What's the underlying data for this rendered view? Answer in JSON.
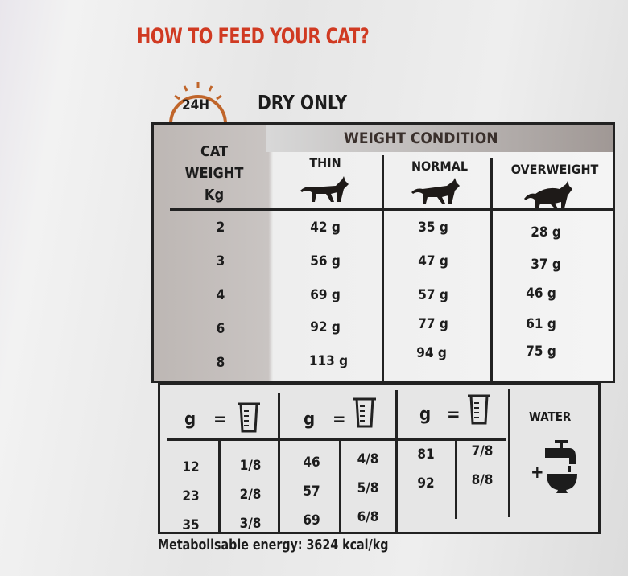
{
  "title": "HOW TO FEED YOUR CAT?",
  "clock_label": "24H",
  "subtitle": "DRY ONLY",
  "table": {
    "row_header": [
      "CAT",
      "WEIGHT",
      "Kg"
    ],
    "group_header": "WEIGHT CONDITION",
    "columns": [
      "THIN",
      "NORMAL",
      "OVERWEIGHT"
    ],
    "rows": [
      {
        "weight": "2",
        "values": [
          "42 g",
          "35 g",
          "28 g"
        ]
      },
      {
        "weight": "3",
        "values": [
          "56 g",
          "47 g",
          "37 g"
        ]
      },
      {
        "weight": "4",
        "values": [
          "69 g",
          "57 g",
          "46 g"
        ]
      },
      {
        "weight": "6",
        "values": [
          "92 g",
          "77 g",
          "61 g"
        ]
      },
      {
        "weight": "8",
        "values": [
          "113 g",
          "94 g",
          "75 g"
        ]
      }
    ]
  },
  "conversion": {
    "header_g": "g",
    "header_eq": "=",
    "groups": [
      {
        "grams": [
          "12",
          "23",
          "35"
        ],
        "cups": [
          "1/8",
          "2/8",
          "3/8"
        ]
      },
      {
        "grams": [
          "46",
          "57",
          "69"
        ],
        "cups": [
          "4/8",
          "5/8",
          "6/8"
        ]
      },
      {
        "grams": [
          "81",
          "92"
        ],
        "cups": [
          "7/8",
          "8/8"
        ]
      }
    ],
    "water_label": "WATER",
    "plus": "+"
  },
  "energy": "Metabolisable energy: 3624 kcal/kg",
  "colors": {
    "title": "#d03a22",
    "clock": "#c0652a"
  }
}
